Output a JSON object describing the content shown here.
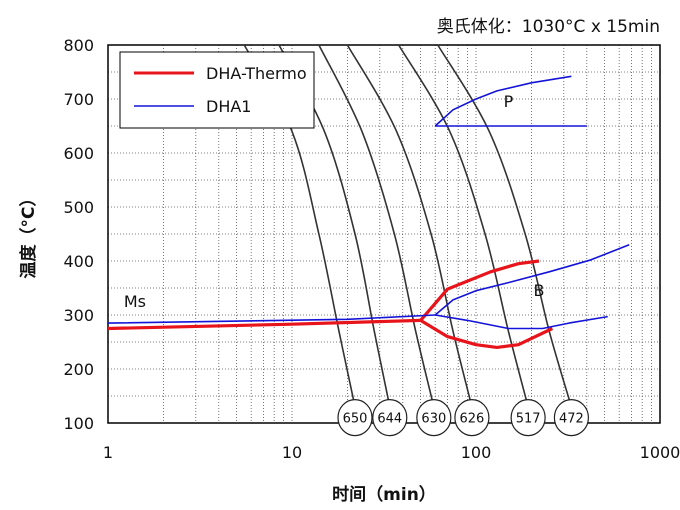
{
  "chart_data": {
    "type": "line",
    "title": "奥氏体化：1030°C x 15min",
    "xlabel": "时间（min）",
    "ylabel": "温度（°C）",
    "xscale": "log",
    "xlim": [
      1,
      1000
    ],
    "ylim": [
      100,
      800
    ],
    "xticks": [
      "1",
      "10",
      "100",
      "1000"
    ],
    "yticks": [
      "100",
      "200",
      "300",
      "400",
      "500",
      "600",
      "700",
      "800"
    ],
    "grid": true,
    "legend_position": "top-left",
    "colors": {
      "DHA-Thermo": "#e8141b",
      "DHA1": "#1414d8",
      "cooling": "#333333"
    },
    "series": [
      {
        "name": "DHA-Thermo",
        "segments": [
          {
            "x": [
              1,
              10,
              50
            ],
            "y": [
              275,
              283,
              290
            ]
          },
          {
            "x": [
              50,
              70,
              120,
              170,
              220
            ],
            "y": [
              290,
              348,
              380,
              395,
              400
            ]
          },
          {
            "x": [
              50,
              70,
              100,
              130,
              170,
              260
            ],
            "y": [
              290,
              260,
              245,
              240,
              245,
              275
            ]
          }
        ]
      },
      {
        "name": "DHA1",
        "segments": [
          {
            "x": [
              1,
              20,
              60
            ],
            "y": [
              285,
              292,
              300
            ]
          },
          {
            "x": [
              60,
              75,
              100,
              150,
              250,
              420,
              680
            ],
            "y": [
              300,
              328,
              345,
              360,
              380,
              402,
              430
            ]
          },
          {
            "x": [
              60,
              90,
              150,
              230,
              320,
              520
            ],
            "y": [
              300,
              290,
              275,
              275,
              285,
              297
            ]
          },
          {
            "x": [
              60,
              400
            ],
            "y": [
              650,
              650
            ]
          },
          {
            "x": [
              60,
              75,
              100,
              130,
              200,
              330
            ],
            "y": [
              650,
              680,
              700,
              715,
              730,
              742
            ]
          }
        ]
      }
    ],
    "cooling_curves": [
      {
        "label": "650",
        "x": [
          5.5,
          10,
          14,
          18,
          22
        ],
        "y": [
          800,
          640,
          450,
          270,
          130
        ]
      },
      {
        "label": "644",
        "x": [
          8.5,
          15,
          22,
          28,
          34
        ],
        "y": [
          800,
          640,
          450,
          270,
          130
        ]
      },
      {
        "label": "630",
        "x": [
          14,
          24,
          36,
          47,
          59
        ],
        "y": [
          800,
          640,
          450,
          270,
          130
        ]
      },
      {
        "label": "626",
        "x": [
          20,
          37,
          57,
          75,
          95
        ],
        "y": [
          800,
          640,
          450,
          270,
          130
        ]
      },
      {
        "label": "517",
        "x": [
          38,
          72,
          112,
          150,
          192
        ],
        "y": [
          800,
          640,
          450,
          270,
          130
        ]
      },
      {
        "label": "472",
        "x": [
          62,
          118,
          185,
          250,
          330
        ],
        "y": [
          800,
          640,
          450,
          270,
          130
        ]
      }
    ],
    "annotations": [
      {
        "text": "P",
        "x": 150,
        "y": 685
      },
      {
        "text": "B",
        "x": 220,
        "y": 335
      },
      {
        "text": "Ms",
        "x": 1.4,
        "y": 315
      }
    ]
  }
}
